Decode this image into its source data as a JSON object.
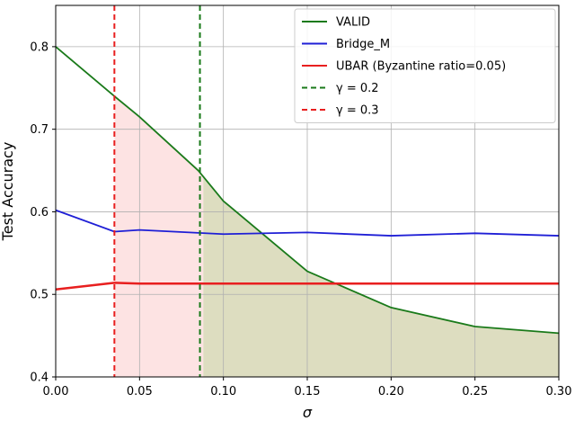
{
  "chart_data": {
    "type": "line",
    "title": "",
    "xlabel": "σ",
    "ylabel": "Test Accuracy",
    "xlim": [
      0.0,
      0.3
    ],
    "ylim": [
      0.4,
      0.85
    ],
    "xticks": [
      0.0,
      0.05,
      0.1,
      0.15,
      0.2,
      0.25,
      0.3
    ],
    "xtick_labels": [
      "0.00",
      "0.05",
      "0.10",
      "0.15",
      "0.20",
      "0.25",
      "0.30"
    ],
    "yticks": [
      0.4,
      0.5,
      0.6,
      0.7,
      0.8
    ],
    "ytick_labels": [
      "0.4",
      "0.5",
      "0.6",
      "0.7",
      "0.8"
    ],
    "grid": true,
    "legend_position": "top-right",
    "series": [
      {
        "name": "VALID",
        "color": "#1a7a1a",
        "style": "solid",
        "points": [
          [
            0.0,
            0.8
          ],
          [
            0.035,
            0.74
          ],
          [
            0.05,
            0.715
          ],
          [
            0.085,
            0.65
          ],
          [
            0.1,
            0.613
          ],
          [
            0.15,
            0.528
          ],
          [
            0.2,
            0.484
          ],
          [
            0.25,
            0.461
          ],
          [
            0.3,
            0.453
          ]
        ]
      },
      {
        "name": "Bridge_M",
        "color": "#1f1fd6",
        "style": "solid",
        "points": [
          [
            0.0,
            0.602
          ],
          [
            0.035,
            0.576
          ],
          [
            0.05,
            0.578
          ],
          [
            0.1,
            0.573
          ],
          [
            0.15,
            0.575
          ],
          [
            0.2,
            0.571
          ],
          [
            0.25,
            0.574
          ],
          [
            0.3,
            0.571
          ]
        ]
      },
      {
        "name": "UBAR (Byzantine ratio=0.05)",
        "color": "#e81f1f",
        "style": "solid",
        "points": [
          [
            0.0,
            0.506
          ],
          [
            0.035,
            0.514
          ],
          [
            0.05,
            0.513
          ],
          [
            0.1,
            0.513
          ],
          [
            0.15,
            0.513
          ],
          [
            0.2,
            0.513
          ],
          [
            0.25,
            0.513
          ],
          [
            0.3,
            0.513
          ]
        ]
      }
    ],
    "vlines": [
      {
        "name": "γ = 0.2",
        "x": 0.086,
        "color": "#1a7a1a",
        "style": "dashed"
      },
      {
        "name": "γ = 0.3",
        "x": 0.035,
        "color": "#e81f1f",
        "style": "dashed"
      }
    ],
    "shaded_regions": [
      {
        "x_from": 0.035,
        "x_to": 0.088,
        "y_from": 0.4,
        "y_to": "VALID",
        "color": "#fde3e3"
      },
      {
        "x_from": 0.088,
        "x_to": 0.3,
        "y_from": 0.4,
        "y_to": "VALID",
        "color": "#ddddc0"
      }
    ],
    "legend": [
      {
        "label": "VALID",
        "color": "#1a7a1a",
        "style": "solid"
      },
      {
        "label": "Bridge_M",
        "color": "#1f1fd6",
        "style": "solid"
      },
      {
        "label": "UBAR (Byzantine ratio=0.05)",
        "color": "#e81f1f",
        "style": "solid"
      },
      {
        "label": "γ = 0.2",
        "color": "#1a7a1a",
        "style": "dashed"
      },
      {
        "label": "γ = 0.3",
        "color": "#e81f1f",
        "style": "dashed"
      }
    ]
  }
}
